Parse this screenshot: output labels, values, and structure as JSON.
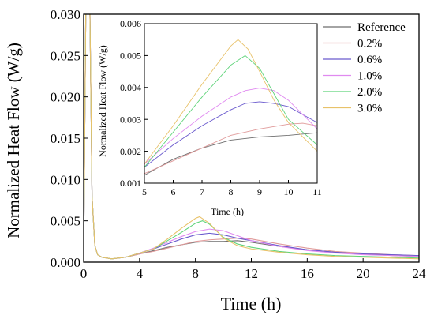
{
  "chart_data": [
    {
      "id": "main",
      "type": "line",
      "title": "",
      "xlabel": "Time (h)",
      "ylabel": "Normalized Heat Flow (W/g)",
      "xlim": [
        0,
        24
      ],
      "ylim": [
        0,
        0.03
      ],
      "x_ticks": [
        0,
        4,
        8,
        12,
        16,
        20,
        24
      ],
      "y_ticks": [
        0.0,
        0.005,
        0.01,
        0.015,
        0.02,
        0.025,
        0.03
      ],
      "x_tick_labels": [
        "0",
        "4",
        "8",
        "12",
        "16",
        "20",
        "24"
      ],
      "y_tick_labels": [
        "0.000",
        "0.005",
        "0.010",
        "0.015",
        "0.020",
        "0.025",
        "0.030"
      ],
      "grid": false,
      "legend_position": "top-right",
      "series": [
        {
          "name": "Reference",
          "color": "#6e6e6e",
          "x": [
            0,
            0.15,
            0.3,
            0.45,
            0.6,
            0.8,
            1.0,
            1.3,
            2,
            3,
            4,
            5,
            6,
            7,
            8,
            9,
            10,
            11,
            12,
            14,
            16,
            18,
            20,
            22,
            24
          ],
          "y": [
            0.0005,
            0.03,
            0.03,
            0.03,
            0.008,
            0.002,
            0.0009,
            0.0006,
            0.0004,
            0.0006,
            0.001,
            0.0014,
            0.0018,
            0.0021,
            0.0024,
            0.0025,
            0.0025,
            0.0026,
            0.0024,
            0.0019,
            0.0015,
            0.0012,
            0.001,
            0.0008,
            0.0007
          ]
        },
        {
          "name": "0.2%",
          "color": "#e09a9a",
          "x": [
            0,
            0.15,
            0.3,
            0.45,
            0.6,
            0.8,
            1.0,
            1.3,
            2,
            3,
            4,
            5,
            6,
            7,
            8,
            9,
            10,
            11,
            12,
            14,
            16,
            18,
            20,
            22,
            24
          ],
          "y": [
            0.0005,
            0.03,
            0.03,
            0.03,
            0.008,
            0.002,
            0.0009,
            0.0006,
            0.0004,
            0.0006,
            0.001,
            0.0013,
            0.0017,
            0.0021,
            0.0025,
            0.0027,
            0.0028,
            0.0029,
            0.0028,
            0.0022,
            0.0017,
            0.0013,
            0.0011,
            0.0009,
            0.0008
          ]
        },
        {
          "name": "0.6%",
          "color": "#6a5acd",
          "x": [
            0,
            0.15,
            0.3,
            0.45,
            0.6,
            0.8,
            1.0,
            1.3,
            2,
            3,
            4,
            5,
            6,
            7,
            8,
            9,
            10,
            11,
            12,
            14,
            16,
            18,
            20,
            22,
            24
          ],
          "y": [
            0.0005,
            0.03,
            0.03,
            0.03,
            0.008,
            0.002,
            0.0009,
            0.0006,
            0.0004,
            0.0006,
            0.0011,
            0.0016,
            0.0022,
            0.0028,
            0.0033,
            0.0035,
            0.0033,
            0.0029,
            0.0026,
            0.002,
            0.0015,
            0.0012,
            0.001,
            0.0009,
            0.0008
          ]
        },
        {
          "name": "1.0%",
          "color": "#e08af0",
          "x": [
            0,
            0.15,
            0.3,
            0.45,
            0.6,
            0.8,
            1.0,
            1.3,
            2,
            3,
            4,
            5,
            6,
            7,
            8,
            9,
            10,
            11,
            12,
            14,
            16,
            18,
            20,
            22,
            24
          ],
          "y": [
            0.0005,
            0.03,
            0.03,
            0.03,
            0.008,
            0.002,
            0.0009,
            0.0006,
            0.0004,
            0.0006,
            0.0011,
            0.0017,
            0.0024,
            0.0031,
            0.0037,
            0.004,
            0.0038,
            0.0032,
            0.0026,
            0.0019,
            0.0014,
            0.0011,
            0.0009,
            0.0008,
            0.0007
          ]
        },
        {
          "name": "2.0%",
          "color": "#5fd47a",
          "x": [
            0,
            0.15,
            0.3,
            0.45,
            0.6,
            0.8,
            1.0,
            1.3,
            2,
            3,
            4,
            5,
            6,
            7,
            8,
            8.5,
            9,
            10,
            11,
            12,
            14,
            16,
            18,
            20,
            22,
            24
          ],
          "y": [
            0.0005,
            0.03,
            0.03,
            0.03,
            0.008,
            0.002,
            0.0009,
            0.0006,
            0.0004,
            0.0006,
            0.0011,
            0.0016,
            0.0026,
            0.0036,
            0.0047,
            0.005,
            0.0046,
            0.003,
            0.0022,
            0.0018,
            0.0013,
            0.001,
            0.0008,
            0.0007,
            0.0006,
            0.0005
          ]
        },
        {
          "name": "3.0%",
          "color": "#e8c26a",
          "x": [
            0,
            0.15,
            0.3,
            0.45,
            0.6,
            0.8,
            1.0,
            1.3,
            2,
            3,
            4,
            5,
            6,
            7,
            8,
            8.3,
            9,
            10,
            11,
            12,
            14,
            16,
            18,
            20,
            22,
            24
          ],
          "y": [
            0.0005,
            0.03,
            0.03,
            0.03,
            0.008,
            0.002,
            0.0009,
            0.0006,
            0.0004,
            0.0006,
            0.0011,
            0.0016,
            0.0028,
            0.0041,
            0.0053,
            0.0055,
            0.0047,
            0.0029,
            0.002,
            0.0016,
            0.0012,
            0.0009,
            0.0007,
            0.0006,
            0.0005,
            0.0004
          ]
        }
      ]
    },
    {
      "id": "inset",
      "type": "line",
      "title": "",
      "xlabel": "Time (h)",
      "ylabel": "Normalized Heat Flow (W/g)",
      "xlim": [
        5,
        11
      ],
      "ylim": [
        0.001,
        0.006
      ],
      "x_ticks": [
        5,
        6,
        7,
        8,
        9,
        10,
        11
      ],
      "y_ticks": [
        0.001,
        0.002,
        0.003,
        0.004,
        0.005,
        0.006
      ],
      "x_tick_labels": [
        "5",
        "6",
        "7",
        "8",
        "9",
        "10",
        "11"
      ],
      "y_tick_labels": [
        "0.001",
        "0.002",
        "0.003",
        "0.004",
        "0.005",
        "0.006"
      ],
      "grid": false,
      "series": [
        {
          "name": "Reference",
          "color": "#6e6e6e",
          "x": [
            5,
            6,
            7,
            8,
            9,
            10,
            11
          ],
          "y": [
            0.00125,
            0.00175,
            0.0021,
            0.00235,
            0.00245,
            0.0025,
            0.00258
          ]
        },
        {
          "name": "0.2%",
          "color": "#e09a9a",
          "x": [
            5,
            6,
            7,
            8,
            9,
            10,
            10.5,
            11
          ],
          "y": [
            0.0013,
            0.0017,
            0.0021,
            0.0025,
            0.0027,
            0.00285,
            0.00288,
            0.0028
          ]
        },
        {
          "name": "0.6%",
          "color": "#6a5acd",
          "x": [
            5,
            6,
            7,
            8,
            8.5,
            9,
            9.5,
            10,
            11
          ],
          "y": [
            0.0015,
            0.0022,
            0.0028,
            0.0033,
            0.0035,
            0.00355,
            0.0035,
            0.0034,
            0.0029
          ]
        },
        {
          "name": "1.0%",
          "color": "#e08af0",
          "x": [
            5,
            6,
            7,
            8,
            8.5,
            9,
            9.5,
            10,
            11
          ],
          "y": [
            0.0016,
            0.0024,
            0.0031,
            0.0037,
            0.0039,
            0.00398,
            0.0039,
            0.0036,
            0.0027
          ]
        },
        {
          "name": "2.0%",
          "color": "#5fd47a",
          "x": [
            5,
            6,
            7,
            8,
            8.5,
            9,
            9.5,
            10,
            11
          ],
          "y": [
            0.0015,
            0.0026,
            0.0037,
            0.0047,
            0.005,
            0.0046,
            0.0038,
            0.003,
            0.0022
          ]
        },
        {
          "name": "3.0%",
          "color": "#e8c26a",
          "x": [
            5,
            6,
            7,
            7.5,
            8,
            8.25,
            8.6,
            9,
            9.5,
            10,
            11
          ],
          "y": [
            0.0016,
            0.0028,
            0.0041,
            0.0047,
            0.0053,
            0.0055,
            0.0052,
            0.0045,
            0.0036,
            0.0029,
            0.002
          ]
        }
      ]
    }
  ]
}
